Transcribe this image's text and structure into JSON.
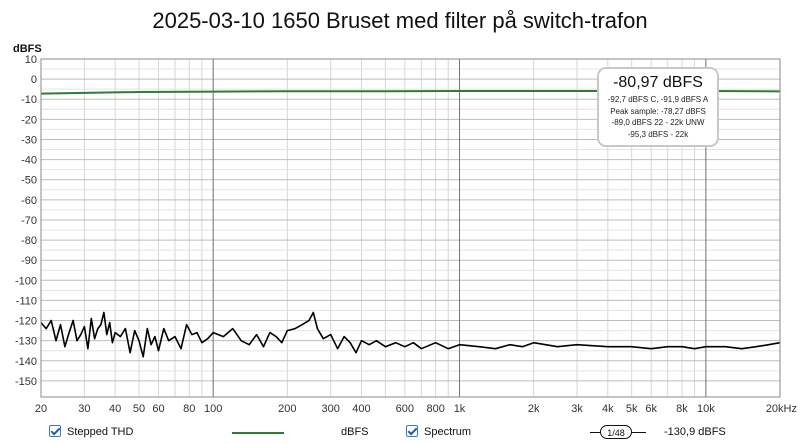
{
  "chart_data": {
    "type": "line",
    "title": "2025-03-10 1650 Bruset med filter på switch-trafon",
    "ylabel": "dBFS",
    "xlabel": "",
    "xscale": "log",
    "xlim": [
      20,
      20000
    ],
    "ylim": [
      -158,
      10
    ],
    "yticks": [
      10,
      0,
      -10,
      -20,
      -30,
      -40,
      -50,
      -60,
      -70,
      -80,
      -90,
      -100,
      -110,
      -120,
      -130,
      -140,
      -150
    ],
    "xticks": [
      {
        "value": 20,
        "label": "20"
      },
      {
        "value": 30,
        "label": "30"
      },
      {
        "value": 40,
        "label": "40"
      },
      {
        "value": 50,
        "label": "50"
      },
      {
        "value": 60,
        "label": "60"
      },
      {
        "value": 80,
        "label": "80"
      },
      {
        "value": 100,
        "label": "100"
      },
      {
        "value": 200,
        "label": "200"
      },
      {
        "value": 300,
        "label": "300"
      },
      {
        "value": 400,
        "label": "400"
      },
      {
        "value": 600,
        "label": "600"
      },
      {
        "value": 800,
        "label": "800"
      },
      {
        "value": 1000,
        "label": "1k"
      },
      {
        "value": 2000,
        "label": "2k"
      },
      {
        "value": 3000,
        "label": "3k"
      },
      {
        "value": 4000,
        "label": "4k"
      },
      {
        "value": 5000,
        "label": "5k"
      },
      {
        "value": 6000,
        "label": "6k"
      },
      {
        "value": 8000,
        "label": "8k"
      },
      {
        "value": 10000,
        "label": "10k"
      },
      {
        "value": 20000,
        "label": "20kHz"
      }
    ],
    "grid": true,
    "series": [
      {
        "name": "dBFS",
        "color": "#2e7d32",
        "x": [
          20,
          50,
          100,
          200,
          500,
          1000,
          2000,
          5000,
          10000,
          20000
        ],
        "y": [
          -7.2,
          -6.4,
          -6.2,
          -6.0,
          -6.0,
          -5.9,
          -5.9,
          -5.9,
          -5.9,
          -6.1
        ]
      },
      {
        "name": "Spectrum",
        "color": "#000000",
        "x": [
          20,
          21,
          22,
          23,
          24,
          25,
          26,
          27,
          28,
          29,
          30,
          31,
          32,
          33,
          34,
          35,
          36,
          37,
          38,
          39,
          40,
          42,
          44,
          46,
          48,
          50,
          52,
          54,
          56,
          58,
          60,
          63,
          66,
          70,
          74,
          78,
          82,
          86,
          90,
          95,
          100,
          110,
          120,
          130,
          140,
          150,
          160,
          170,
          180,
          190,
          200,
          215,
          230,
          245,
          255,
          265,
          280,
          300,
          320,
          340,
          360,
          380,
          400,
          430,
          460,
          500,
          550,
          600,
          650,
          700,
          800,
          900,
          1000,
          1200,
          1400,
          1600,
          1800,
          2000,
          2500,
          3000,
          4000,
          5000,
          6000,
          7000,
          8000,
          9000,
          10000,
          12000,
          14000,
          16000,
          18000,
          20000
        ],
        "y": [
          -121,
          -124,
          -120,
          -130,
          -122,
          -133,
          -126,
          -120,
          -130,
          -127,
          -123,
          -134,
          -119,
          -129,
          -124,
          -122,
          -116,
          -127,
          -121,
          -131,
          -126,
          -128,
          -124,
          -136,
          -125,
          -130,
          -138,
          -124,
          -132,
          -128,
          -135,
          -124,
          -130,
          -128,
          -134,
          -122,
          -127,
          -126,
          -131,
          -129,
          -126,
          -128,
          -124,
          -130,
          -132,
          -127,
          -133,
          -126,
          -128,
          -131,
          -125,
          -124,
          -122,
          -120,
          -116,
          -124,
          -129,
          -127,
          -134,
          -128,
          -131,
          -136,
          -130,
          -132,
          -130,
          -133,
          -131,
          -133,
          -131,
          -134,
          -131,
          -134,
          -132,
          -133,
          -134,
          -132,
          -133,
          -131,
          -133,
          -132,
          -133,
          -133,
          -134,
          -133,
          -133,
          -134,
          -133,
          -133,
          -134,
          -133,
          -132,
          -131
        ]
      }
    ]
  },
  "info_box": {
    "value": "-80,97 dBFS",
    "line1": "-92,7 dBFS C, -91,9 dBFS A",
    "line2": "Peak sample: -78,27 dBFS",
    "line3": "-89,0 dBFS 22 - 22k UNW",
    "line4": "-95,3 dBFS - 22k"
  },
  "legend": {
    "item1_label": "Stepped THD",
    "item2_label": "dBFS",
    "item2_color": "#2e7d32",
    "item3_label": "Spectrum",
    "smoothing_label": "1/48",
    "readout": "-130,9 dBFS"
  }
}
